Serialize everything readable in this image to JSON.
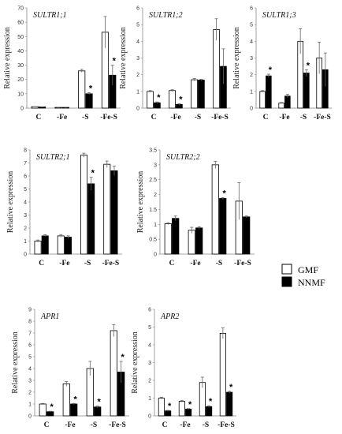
{
  "legend": {
    "entries": [
      {
        "label": "GMF",
        "color": "#ffffff"
      },
      {
        "label": "NNMF",
        "color": "#000000"
      }
    ]
  },
  "chart_data": [
    {
      "type": "bar",
      "title": "SULTR1;1",
      "ylabel": "Relative expression",
      "categories": [
        "C",
        "-Fe",
        "-S",
        "-Fe-S"
      ],
      "ylim": [
        0,
        70
      ],
      "yticks": [
        0,
        10,
        20,
        30,
        40,
        50,
        60,
        70
      ],
      "series": [
        {
          "name": "GMF",
          "values": [
            1.0,
            0.5,
            26,
            53
          ],
          "errors": [
            0.1,
            0.1,
            1.0,
            11
          ]
        },
        {
          "name": "NNMF",
          "values": [
            0.8,
            0.5,
            10,
            23
          ],
          "errors": [
            0.1,
            0.1,
            0.7,
            7
          ]
        }
      ],
      "significance": [
        {
          "series": "NNMF",
          "category": "-S",
          "label": "*"
        },
        {
          "series": "NNMF",
          "category": "-Fe-S",
          "label": "*"
        }
      ]
    },
    {
      "type": "bar",
      "title": "SULTR1;2",
      "ylabel": "Relative expression",
      "categories": [
        "C",
        "-Fe",
        "-S",
        "-Fe-S"
      ],
      "ylim": [
        0,
        6
      ],
      "yticks": [
        0,
        1,
        2,
        3,
        4,
        5,
        6
      ],
      "series": [
        {
          "name": "GMF",
          "values": [
            1.0,
            1.05,
            1.7,
            4.7
          ],
          "errors": [
            0.05,
            0.05,
            0.07,
            0.65
          ]
        },
        {
          "name": "NNMF",
          "values": [
            0.32,
            0.22,
            1.68,
            2.5
          ],
          "errors": [
            0.05,
            0.04,
            0.05,
            1.05
          ]
        }
      ],
      "significance": [
        {
          "series": "NNMF",
          "category": "C",
          "label": "*"
        },
        {
          "series": "NNMF",
          "category": "-Fe",
          "label": "*"
        }
      ]
    },
    {
      "type": "bar",
      "title": "SULTR1;3",
      "ylabel": "Relative expression",
      "categories": [
        "C",
        "-Fe",
        "-S",
        "-Fe-S"
      ],
      "ylim": [
        0,
        6
      ],
      "yticks": [
        0,
        1,
        2,
        3,
        4,
        5,
        6
      ],
      "series": [
        {
          "name": "GMF",
          "values": [
            1.0,
            0.3,
            4.0,
            3.0
          ],
          "errors": [
            0.05,
            0.03,
            0.75,
            0.95
          ]
        },
        {
          "name": "NNMF",
          "values": [
            1.93,
            0.72,
            2.1,
            2.3
          ],
          "errors": [
            0.1,
            0.1,
            0.2,
            1.0
          ]
        }
      ],
      "significance": [
        {
          "series": "NNMF",
          "category": "C",
          "label": "*"
        },
        {
          "series": "NNMF",
          "category": "-S",
          "label": "*"
        }
      ]
    },
    {
      "type": "bar",
      "title": "SULTR2;1",
      "ylabel": "Relative expression",
      "categories": [
        "C",
        "-Fe",
        "-S",
        "-Fe-S"
      ],
      "ylim": [
        0,
        8
      ],
      "yticks": [
        0,
        1,
        2,
        3,
        4,
        5,
        6,
        7,
        8
      ],
      "series": [
        {
          "name": "GMF",
          "values": [
            1.0,
            1.4,
            7.6,
            6.9
          ],
          "errors": [
            0.08,
            0.1,
            0.15,
            0.25
          ]
        },
        {
          "name": "NNMF",
          "values": [
            1.4,
            1.3,
            5.4,
            6.4
          ],
          "errors": [
            0.08,
            0.1,
            0.5,
            0.35
          ]
        }
      ],
      "significance": [
        {
          "series": "NNMF",
          "category": "-S",
          "label": "*"
        }
      ]
    },
    {
      "type": "bar",
      "title": "SULTR2;2",
      "ylabel": "Relative expression",
      "categories": [
        "C",
        "-Fe",
        "-S",
        "-Fe-S"
      ],
      "ylim": [
        0,
        3.5
      ],
      "yticks": [
        0,
        0.5,
        1,
        1.5,
        2,
        2.5,
        3,
        3.5
      ],
      "series": [
        {
          "name": "GMF",
          "values": [
            1.02,
            0.8,
            3.0,
            1.78
          ],
          "errors": [
            0.03,
            0.1,
            0.12,
            0.62
          ]
        },
        {
          "name": "NNMF",
          "values": [
            1.2,
            0.88,
            1.87,
            1.25
          ],
          "errors": [
            0.08,
            0.04,
            0.03,
            0.03
          ]
        }
      ],
      "significance": [
        {
          "series": "NNMF",
          "category": "-S",
          "label": "*"
        }
      ]
    },
    {
      "type": "bar",
      "title": "APR1",
      "ylabel": "Relative expression",
      "categories": [
        "C",
        "-Fe",
        "-S",
        "-Fe-S"
      ],
      "ylim": [
        0,
        9
      ],
      "yticks": [
        0,
        1,
        2,
        3,
        4,
        5,
        6,
        7,
        8,
        9
      ],
      "series": [
        {
          "name": "GMF",
          "values": [
            1.0,
            2.7,
            4.0,
            7.2
          ],
          "errors": [
            0.05,
            0.2,
            0.6,
            0.5
          ]
        },
        {
          "name": "NNMF",
          "values": [
            0.35,
            1.0,
            0.75,
            3.7
          ],
          "errors": [
            0.04,
            0.05,
            0.08,
            0.9
          ]
        }
      ],
      "significance": [
        {
          "series": "NNMF",
          "category": "C",
          "label": "*"
        },
        {
          "series": "NNMF",
          "category": "-Fe",
          "label": "*"
        },
        {
          "series": "NNMF",
          "category": "-S",
          "label": "*"
        },
        {
          "series": "NNMF",
          "category": "-Fe-S",
          "label": "*"
        }
      ]
    },
    {
      "type": "bar",
      "title": "APR2",
      "ylabel": "Relative expression",
      "categories": [
        "C",
        "-Fe",
        "-S",
        "-Fe-S"
      ],
      "ylim": [
        0,
        6
      ],
      "yticks": [
        0,
        1,
        2,
        3,
        4,
        5,
        6
      ],
      "series": [
        {
          "name": "GMF",
          "values": [
            1.0,
            0.82,
            1.88,
            4.65
          ],
          "errors": [
            0.05,
            0.05,
            0.3,
            0.3
          ]
        },
        {
          "name": "NNMF",
          "values": [
            0.28,
            0.38,
            0.52,
            1.33
          ],
          "errors": [
            0.03,
            0.03,
            0.05,
            0.05
          ]
        }
      ],
      "significance": [
        {
          "series": "NNMF",
          "category": "C",
          "label": "*"
        },
        {
          "series": "NNMF",
          "category": "-Fe",
          "label": "*"
        },
        {
          "series": "NNMF",
          "category": "-S",
          "label": "*"
        },
        {
          "series": "NNMF",
          "category": "-Fe-S",
          "label": "*"
        }
      ]
    }
  ]
}
